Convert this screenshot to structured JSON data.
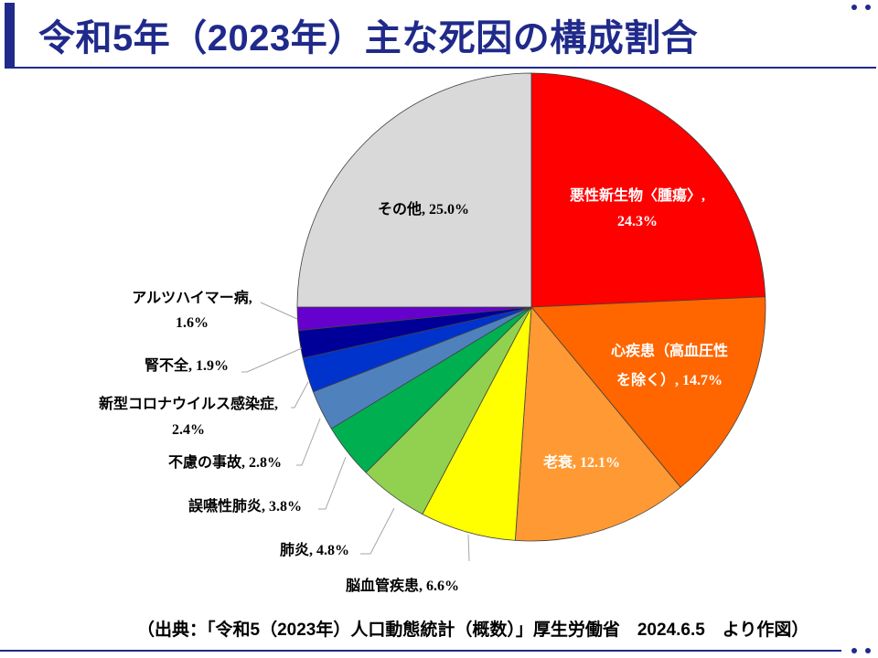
{
  "title": "令和5年（2023年）主な死因の構成割合",
  "source": "（出典：「令和5（2023年）人口動態統計（概数）」厚生労働省　2024.6.5　より作図）",
  "chart_data": {
    "type": "pie",
    "categories": [
      "悪性新生物〈腫瘍〉",
      "心疾患（高血圧性を除く）",
      "老衰",
      "脳血管疾患",
      "肺炎",
      "誤嚥性肺炎",
      "不慮の事故",
      "新型コロナウイルス感染症",
      "腎不全",
      "アルツハイマー病",
      "その他"
    ],
    "values": [
      24.3,
      14.7,
      12.1,
      6.6,
      4.8,
      3.8,
      2.8,
      2.4,
      1.9,
      1.6,
      25.0
    ],
    "unit": "%",
    "colors": [
      "#ff0000",
      "#ff6600",
      "#ff9933",
      "#ffff00",
      "#92d050",
      "#00b050",
      "#4f81bd",
      "#0033cc",
      "#000099",
      "#6600cc",
      "#d9d9d9"
    ]
  }
}
